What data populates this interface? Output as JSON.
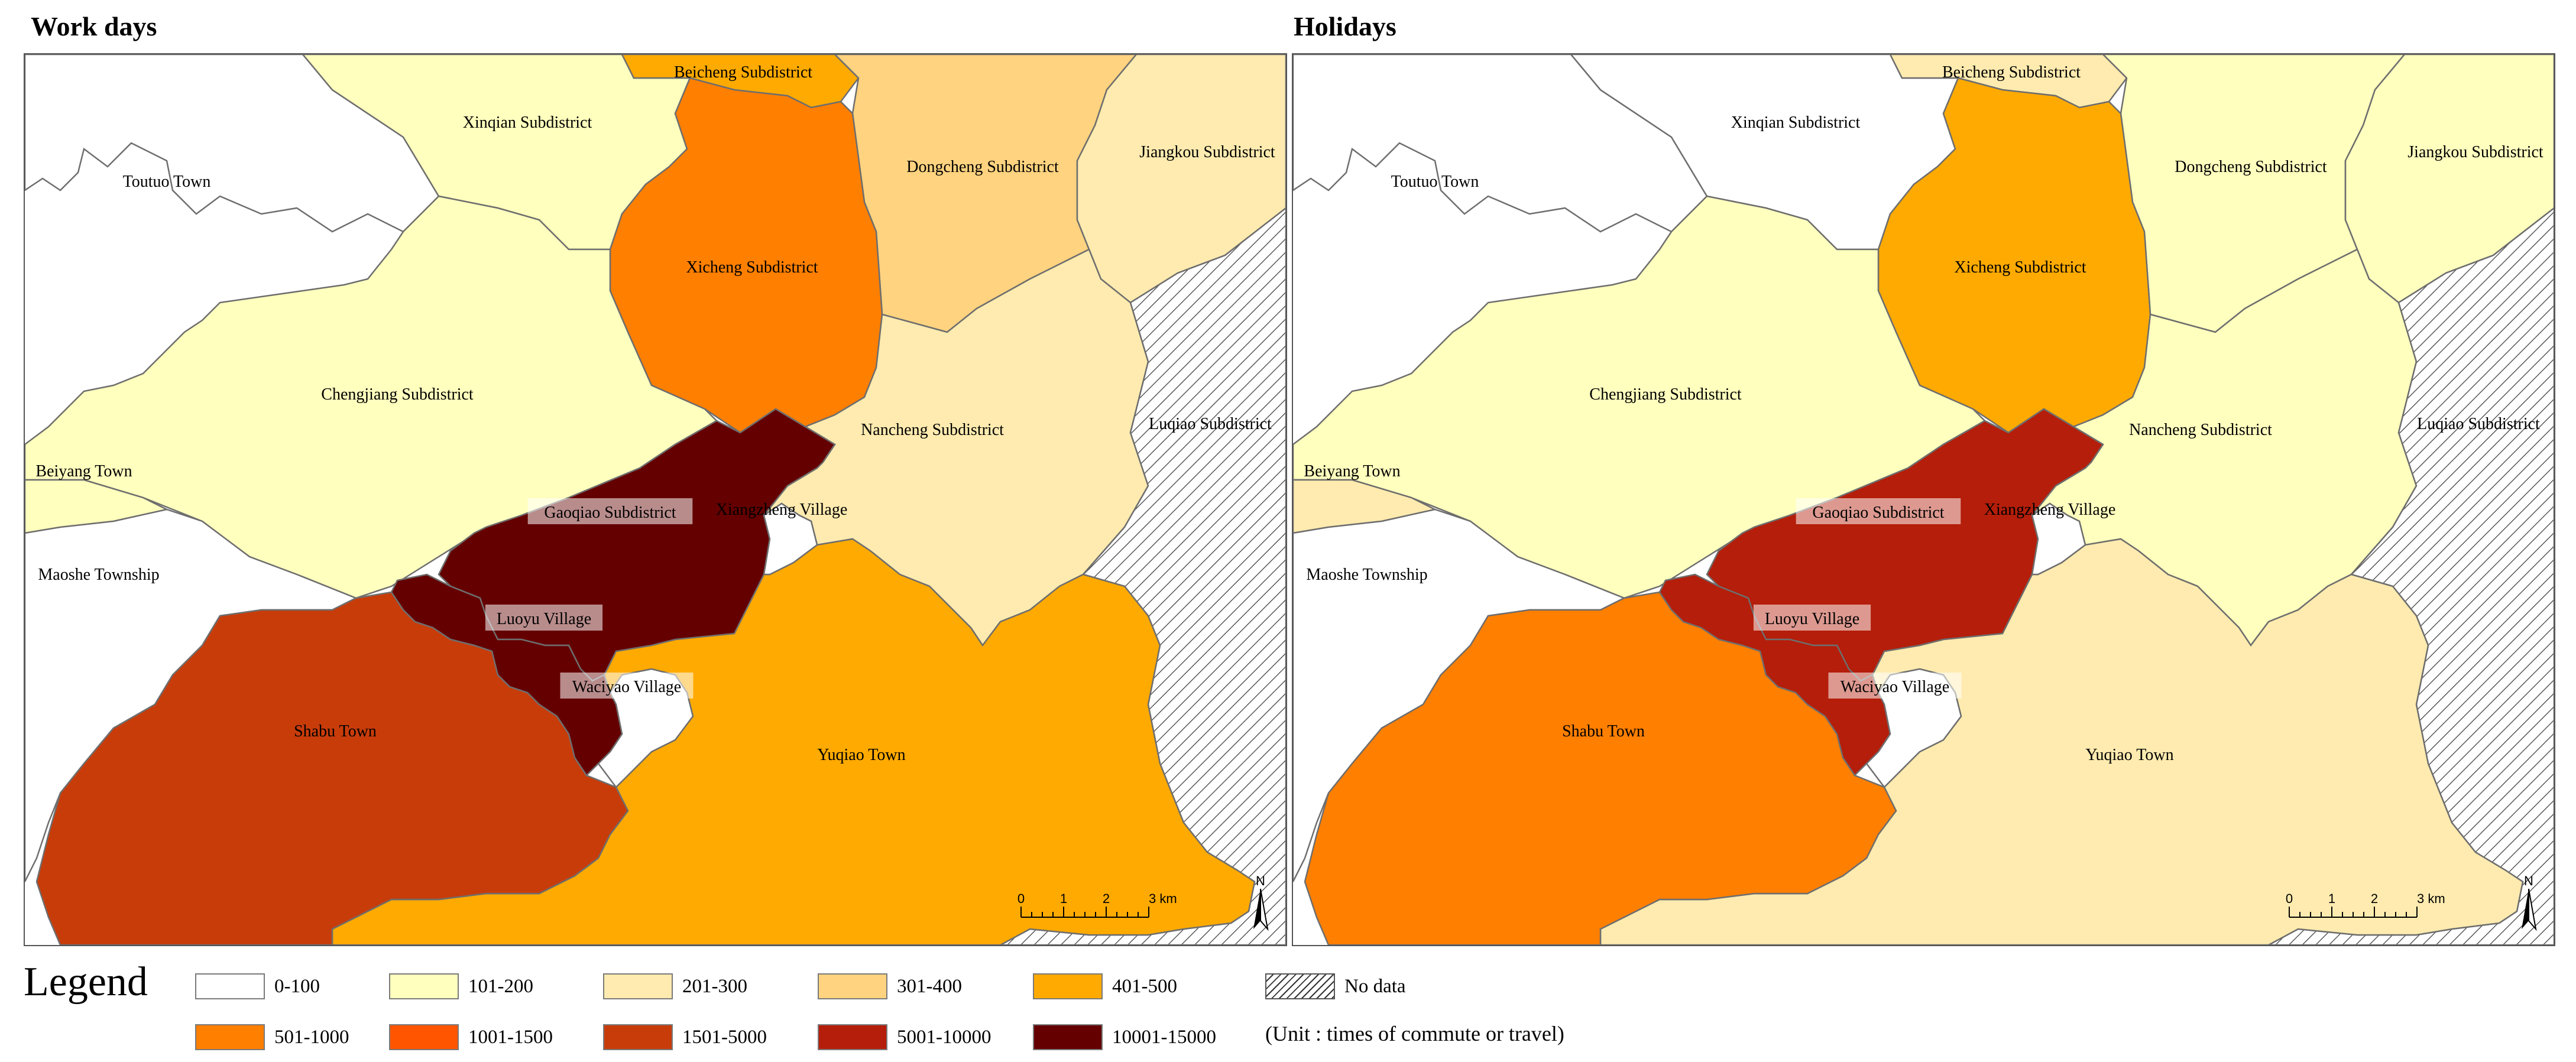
{
  "panels": [
    {
      "title": "Work days",
      "regions": {
        "toutuo": "0-100",
        "xinqian": "101-200",
        "beicheng": "401-500",
        "dongcheng": "301-400",
        "jiangkou": "201-300",
        "xicheng": "501-1000",
        "chengjiang": "101-200",
        "beiyang": "101-200",
        "maoshe": "0-100",
        "gaoqiao": "10001-15000",
        "luoyu": "10001-15000",
        "nancheng": "201-300",
        "xiangzheng": "0-100",
        "shabu": "1501-5000",
        "waciyao": "0-100",
        "yuqiao": "401-500",
        "luqiao": "No data"
      }
    },
    {
      "title": "Holidays",
      "regions": {
        "toutuo": "0-100",
        "xinqian": "0-100",
        "beicheng": "201-300",
        "dongcheng": "101-200",
        "jiangkou": "101-200",
        "xicheng": "401-500",
        "chengjiang": "101-200",
        "beiyang": "201-300",
        "maoshe": "0-100",
        "gaoqiao": "5001-10000",
        "luoyu": "5001-10000",
        "nancheng": "101-200",
        "xiangzheng": "0-100",
        "shabu": "501-1000",
        "waciyao": "0-100",
        "yuqiao": "201-300",
        "luqiao": "No data"
      }
    }
  ],
  "place_names": {
    "toutuo": "Toutuo Town",
    "xinqian": "Xinqian Subdistrict",
    "beicheng": "Beicheng Subdistrict",
    "dongcheng": "Dongcheng Subdistrict",
    "jiangkou": "Jiangkou Subdistrict",
    "xicheng": "Xicheng Subdistrict",
    "chengjiang": "Chengjiang Subdistrict",
    "beiyang": "Beiyang Town",
    "maoshe": "Maoshe Township",
    "gaoqiao": "Gaoqiao Subdistrict",
    "xiangzheng": "Xiangzheng Village",
    "nancheng": "Nancheng Subdistrict",
    "luqiao": "Luqiao Subdistrict",
    "luoyu": "Luoyu Village",
    "waciyao": "Waciyao Village",
    "shabu": "Shabu Town",
    "yuqiao": "Yuqiao Town"
  },
  "scale_bar": {
    "ticks": [
      "0",
      "1",
      "2",
      "3 km"
    ]
  },
  "north_arrow": {
    "label": "N",
    "icon": "north-arrow-icon"
  },
  "highlight": {
    "regions": [
      "luoyu"
    ],
    "outline_color": "#ff0000"
  },
  "legend": {
    "title": "Legend",
    "classes": [
      {
        "label": "0-100",
        "color": "#ffffff"
      },
      {
        "label": "101-200",
        "color": "#ffffbe"
      },
      {
        "label": "201-300",
        "color": "#ffebaf"
      },
      {
        "label": "301-400",
        "color": "#ffd37f"
      },
      {
        "label": "401-500",
        "color": "#ffaa00"
      },
      {
        "label": "501-1000",
        "color": "#ff7f00"
      },
      {
        "label": "1001-1500",
        "color": "#ff5500"
      },
      {
        "label": "1501-5000",
        "color": "#c83c0a"
      },
      {
        "label": "5001-10000",
        "color": "#b41e0a"
      },
      {
        "label": "10001-15000",
        "color": "#640000"
      }
    ],
    "no_data": {
      "label": "No data",
      "pattern": "diagonal-hatch"
    },
    "unit_note": "(Unit : times of commute or travel)"
  }
}
